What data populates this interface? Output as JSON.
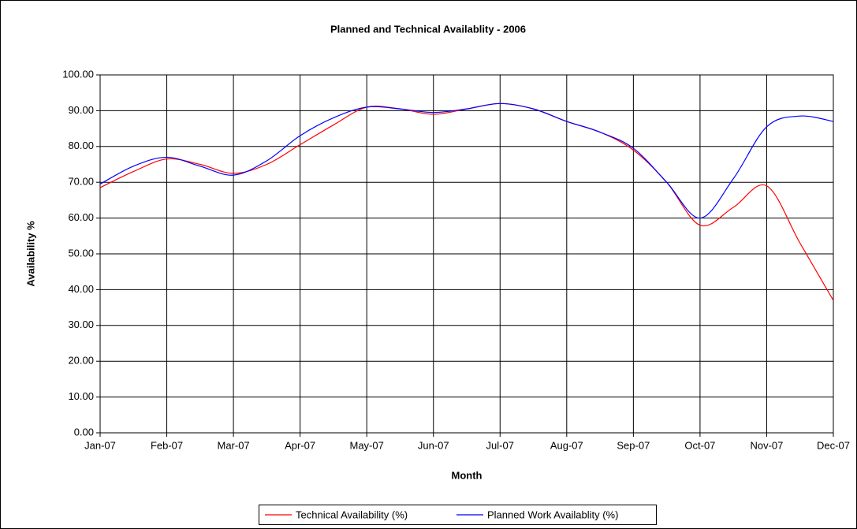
{
  "chart_data": {
    "type": "line",
    "title": "Planned and Technical Availablity - 2006",
    "x_label": "Month",
    "y_label": "Availability %",
    "categories": [
      "Jan-07",
      null,
      "Feb-07",
      null,
      "Mar-07",
      null,
      "Apr-07",
      null,
      "May-07",
      null,
      "Jun-07",
      null,
      "Jul-07",
      null,
      "Aug-07",
      null,
      "Sep-07",
      null,
      "Oct-07",
      null,
      "Nov-07",
      null,
      "Dec-07"
    ],
    "series": [
      {
        "name": "Technical Availability (%)",
        "color": "#ff0000",
        "values": [
          68.5,
          73,
          76.5,
          75,
          72.5,
          75,
          80.5,
          86,
          91,
          90.5,
          89,
          90.5,
          92,
          90.5,
          87,
          84,
          79,
          70,
          58,
          63,
          69,
          53,
          37
        ]
      },
      {
        "name": "Planned Work Availablity (%)",
        "color": "#0000ff",
        "values": [
          69.5,
          74.5,
          77,
          74.5,
          72,
          76,
          83,
          88,
          91,
          90.5,
          89.5,
          90.5,
          92,
          90.5,
          87,
          84,
          79.5,
          70,
          60,
          71,
          85.5,
          88.5,
          87
        ]
      }
    ],
    "ylim": [
      0,
      100
    ],
    "yticks": [
      {
        "value": 0,
        "label": "0.00"
      },
      {
        "value": 10,
        "label": "10.00"
      },
      {
        "value": 20,
        "label": "20.00"
      },
      {
        "value": 30,
        "label": "30.00"
      },
      {
        "value": 40,
        "label": "40.00"
      },
      {
        "value": 50,
        "label": "50.00"
      },
      {
        "value": 60,
        "label": "60.00"
      },
      {
        "value": 70,
        "label": "70.00"
      },
      {
        "value": 80,
        "label": "80.00"
      },
      {
        "value": 90,
        "label": "90.00"
      },
      {
        "value": 100,
        "label": "100.00"
      }
    ],
    "grid": true,
    "legend": "bottom"
  }
}
